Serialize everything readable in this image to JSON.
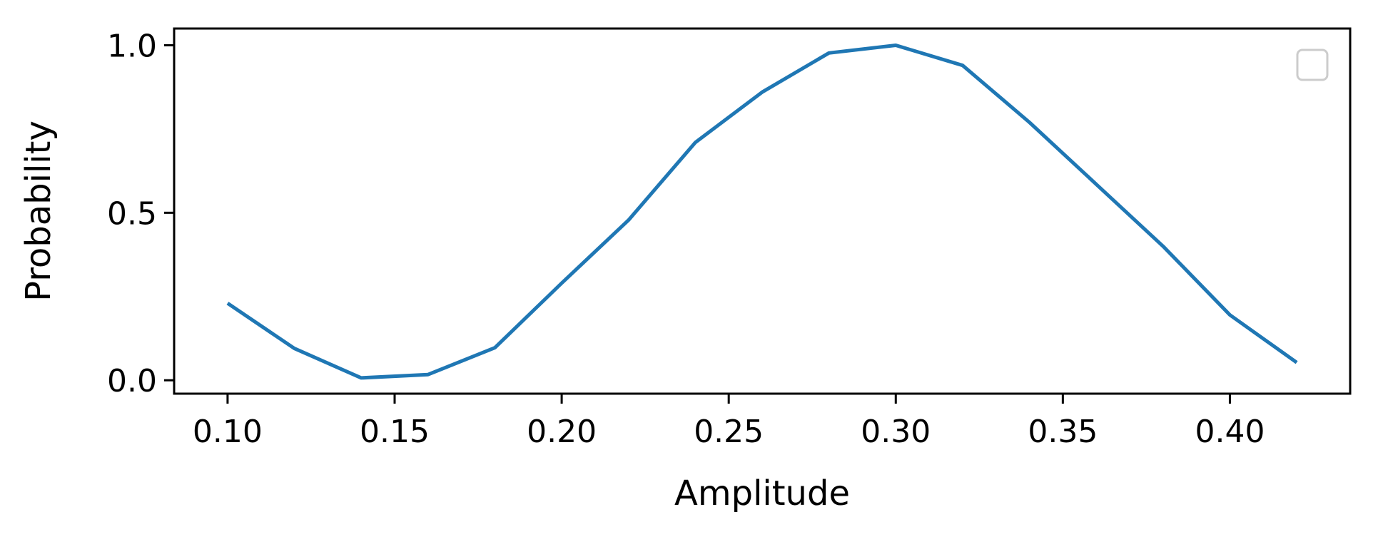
{
  "chart_data": {
    "type": "line",
    "title": "",
    "xlabel": "Amplitude",
    "ylabel": "Probability",
    "xlim": [
      0.084,
      0.436
    ],
    "ylim": [
      -0.04,
      1.05
    ],
    "x_ticks": [
      0.1,
      0.15,
      0.2,
      0.25,
      0.3,
      0.35,
      0.4
    ],
    "x_tick_labels": [
      "0.10",
      "0.15",
      "0.20",
      "0.25",
      "0.30",
      "0.35",
      "0.40"
    ],
    "y_ticks": [
      0.0,
      0.5,
      1.0
    ],
    "y_tick_labels": [
      "0.0",
      "0.5",
      "1.0"
    ],
    "grid": false,
    "legend": {
      "placement": "top-right",
      "entries": []
    },
    "series": [
      {
        "color": "#1f77b4",
        "x": [
          0.1,
          0.12,
          0.14,
          0.16,
          0.18,
          0.2,
          0.22,
          0.24,
          0.26,
          0.28,
          0.3,
          0.32,
          0.34,
          0.36,
          0.38,
          0.4,
          0.42
        ],
        "y": [
          0.23,
          0.095,
          0.007,
          0.017,
          0.097,
          0.29,
          0.478,
          0.71,
          0.86,
          0.977,
          1.0,
          0.94,
          0.77,
          0.585,
          0.4,
          0.195,
          0.053
        ]
      }
    ]
  }
}
